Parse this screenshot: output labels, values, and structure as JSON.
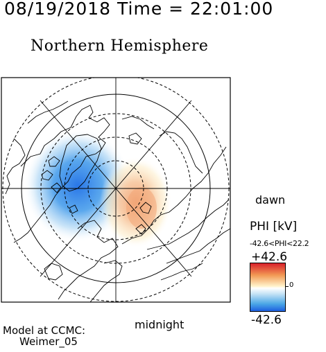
{
  "header": {
    "time_title": "08/19/2018 Time = 22:01:00",
    "hemisphere_title": "Northern Hemisphere"
  },
  "map": {
    "labels": {
      "dawn": "dawn",
      "midnight": "midnight"
    },
    "potential_pattern": {
      "negative_cell": "dusk/midnight sector, over Greenland / Canadian Arctic",
      "positive_cell": "dawn/post-midnight sector, over Siberia"
    }
  },
  "colorbar": {
    "title": "PHI [kV]",
    "range_text": "-42.6<PHI<22.2",
    "max_label": "+42.6",
    "zero_label": "0",
    "min_label": "-42.6",
    "colors": {
      "max": "#d8202a",
      "zero": "#ffffff",
      "min": "#1e5fe0"
    }
  },
  "footer": {
    "model_line1": "Model at CCMC:",
    "model_line2": "Weimer_05"
  }
}
